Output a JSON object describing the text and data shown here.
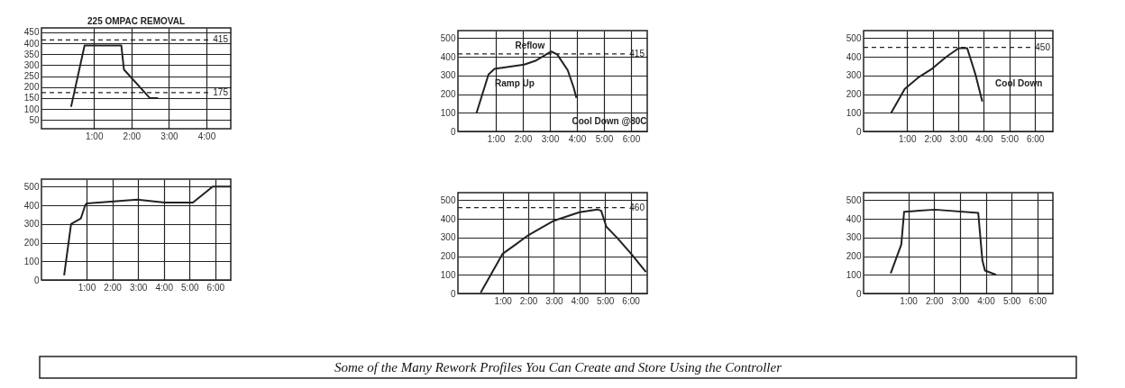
{
  "chart_data": [
    {
      "type": "line",
      "title": "225 OMPAC REMOVAL",
      "x": [
        0.39,
        0.75,
        1.73,
        1.8,
        2.49,
        2.71
      ],
      "series": [
        {
          "color": "#222222",
          "values": [
            110,
            390,
            390,
            280,
            150,
            150
          ]
        }
      ],
      "xlim": [
        -0.4,
        4.65
      ],
      "ylim": [
        10,
        470
      ],
      "xticks": [
        {
          "value": 1,
          "label": "1:00"
        },
        {
          "value": 2,
          "label": "2:00"
        },
        {
          "value": 3,
          "label": "3:00"
        },
        {
          "value": 4,
          "label": "4:00"
        }
      ],
      "yticks": [
        50,
        100,
        150,
        200,
        250,
        300,
        350,
        400,
        450
      ],
      "grid": true,
      "ref_lines": [
        {
          "axis": "y",
          "value": 415,
          "label": "415",
          "line_style": "dashed"
        },
        {
          "axis": "y",
          "value": 175,
          "label": "175",
          "line_style": "dashed"
        }
      ]
    },
    {
      "type": "line",
      "x": [
        0.29,
        0.73,
        0.95,
        2.05,
        2.49,
        3.05,
        3.27,
        3.66,
        3.88,
        3.98
      ],
      "series": [
        {
          "color": "#222222",
          "values": [
            100,
            305,
            335,
            358,
            380,
            428,
            413,
            328,
            235,
            180
          ]
        }
      ],
      "xlim": [
        -0.4,
        6.6
      ],
      "ylim": [
        0,
        540
      ],
      "xticks": [
        {
          "value": 1,
          "label": "1:00"
        },
        {
          "value": 2,
          "label": "2:00"
        },
        {
          "value": 3,
          "label": "3:00"
        },
        {
          "value": 4,
          "label": "4:00"
        },
        {
          "value": 5,
          "label": "5:00"
        },
        {
          "value": 6,
          "label": "6:00"
        }
      ],
      "yticks": [
        0,
        100,
        200,
        300,
        400,
        500
      ],
      "grid": true,
      "ref_lines": [
        {
          "axis": "y",
          "value": 415,
          "label": "415",
          "line_style": "dashed"
        }
      ],
      "annotations": [
        "Reflow",
        "Ramp Up",
        "Cool Down @80C"
      ]
    },
    {
      "type": "line",
      "x": [
        0.38,
        0.91,
        1.45,
        1.99,
        2.54,
        3.02,
        3.35,
        3.67,
        3.94
      ],
      "series": [
        {
          "color": "#222222",
          "values": [
            100,
            228,
            290,
            337,
            400,
            446,
            446,
            307,
            160
          ]
        }
      ],
      "xlim": [
        -0.7,
        6.7
      ],
      "ylim": [
        0,
        540
      ],
      "xticks": [
        {
          "value": 1,
          "label": "1:00"
        },
        {
          "value": 2,
          "label": "2:00"
        },
        {
          "value": 3,
          "label": "3:00"
        },
        {
          "value": 4,
          "label": "4:00"
        },
        {
          "value": 5,
          "label": "5:00"
        },
        {
          "value": 6,
          "label": "6:00"
        }
      ],
      "yticks": [
        0,
        100,
        200,
        300,
        400,
        500
      ],
      "grid": true,
      "ref_lines": [
        {
          "axis": "y",
          "value": 450,
          "label": "450",
          "line_style": "dashed"
        }
      ],
      "annotations": [
        "Cool Down"
      ]
    },
    {
      "type": "line",
      "x": [
        0.13,
        0.4,
        0.78,
        0.95,
        1.0,
        2.97,
        4.04,
        5.13,
        5.9,
        6.6
      ],
      "series": [
        {
          "color": "#222222",
          "values": [
            25,
            300,
            330,
            400,
            410,
            430,
            415,
            415,
            500,
            500
          ]
        }
      ],
      "xlim": [
        -0.75,
        6.6
      ],
      "ylim": [
        0,
        540
      ],
      "xticks": [
        {
          "value": 1,
          "label": "1:00"
        },
        {
          "value": 2,
          "label": "2:00"
        },
        {
          "value": 3,
          "label": "3:00"
        },
        {
          "value": 4,
          "label": "4:00"
        },
        {
          "value": 5,
          "label": "5:00"
        },
        {
          "value": 6,
          "label": "6:00"
        }
      ],
      "yticks": [
        0,
        100,
        200,
        300,
        400,
        500
      ],
      "grid": true
    },
    {
      "type": "line",
      "x": [
        0.14,
        1.0,
        1.48,
        2.0,
        2.97,
        4.0,
        4.7,
        4.85,
        5.05,
        5.48,
        6.02,
        6.6
      ],
      "series": [
        {
          "color": "#222222",
          "values": [
            5,
            213,
            260,
            312,
            388,
            435,
            450,
            443,
            358,
            297,
            213,
            115
          ]
        }
      ],
      "xlim": [
        -0.75,
        6.65
      ],
      "ylim": [
        0,
        540
      ],
      "xticks": [
        {
          "value": 1,
          "label": "1:00"
        },
        {
          "value": 2,
          "label": "2:00"
        },
        {
          "value": 3,
          "label": "3:00"
        },
        {
          "value": 4,
          "label": "4:00"
        },
        {
          "value": 5,
          "label": "5:00"
        },
        {
          "value": 6,
          "label": "6:00"
        }
      ],
      "yticks": [
        0,
        100,
        200,
        300,
        400,
        500
      ],
      "grid": true,
      "ref_lines": [
        {
          "axis": "y",
          "value": 460,
          "label": "460",
          "line_style": "dashed"
        }
      ]
    },
    {
      "type": "line",
      "x": [
        0.32,
        0.73,
        0.84,
        2.03,
        3.71,
        3.87,
        3.97,
        4.4
      ],
      "series": [
        {
          "color": "#222222",
          "values": [
            108,
            262,
            438,
            449,
            431,
            177,
            123,
            100
          ]
        }
      ],
      "xlim": [
        -0.73,
        6.6
      ],
      "ylim": [
        0,
        540
      ],
      "xticks": [
        {
          "value": 1,
          "label": "1:00"
        },
        {
          "value": 2,
          "label": "2:00"
        },
        {
          "value": 3,
          "label": "3:00"
        },
        {
          "value": 4,
          "label": "4:00"
        },
        {
          "value": 5,
          "label": "5:00"
        },
        {
          "value": 6,
          "label": "6:00"
        }
      ],
      "yticks": [
        0,
        100,
        200,
        300,
        400,
        500
      ],
      "grid": true
    },
    {
      "type": "other",
      "annotations": [
        "Some of the Many Rework Profiles You Can Create and Store Using the Controller"
      ]
    }
  ]
}
